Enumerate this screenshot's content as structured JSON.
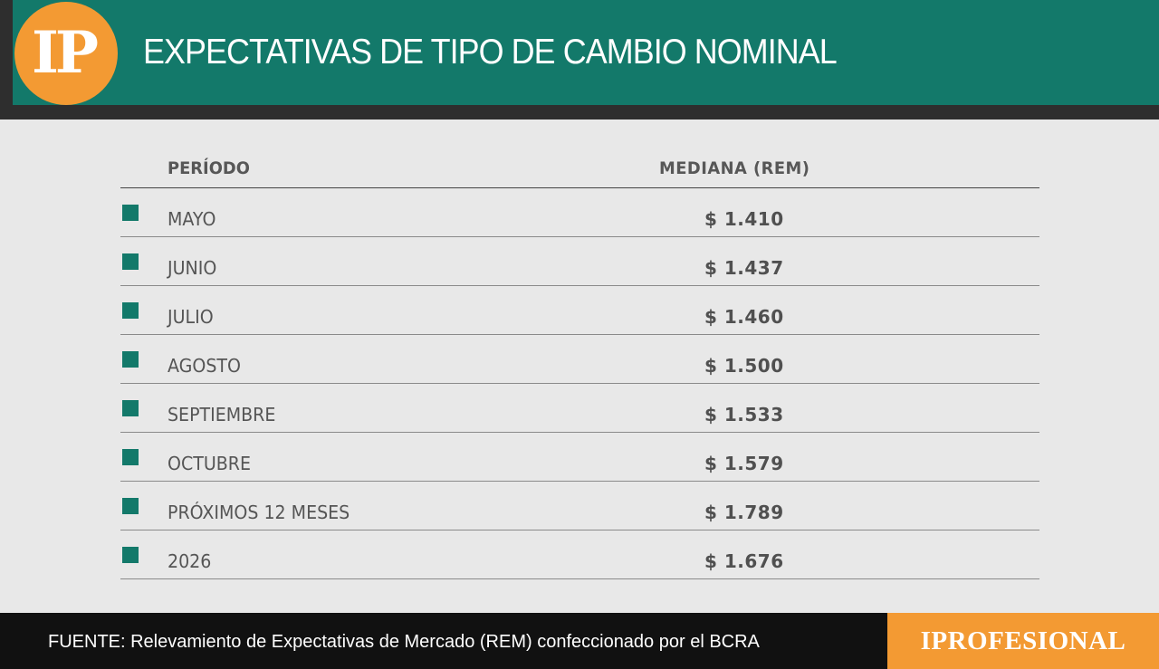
{
  "header": {
    "logo_text": "IP",
    "title": "EXPECTATIVAS DE TIPO DE CAMBIO NOMINAL"
  },
  "table": {
    "columns": [
      "PERÍODO",
      "MEDIANA (REM)"
    ],
    "rows": [
      {
        "period": "MAYO",
        "value": "$ 1.410"
      },
      {
        "period": "JUNIO",
        "value": "$ 1.437"
      },
      {
        "period": "JULIO",
        "value": "$ 1.460"
      },
      {
        "period": "AGOSTO",
        "value": "$ 1.500"
      },
      {
        "period": "SEPTIEMBRE",
        "value": "$ 1.533"
      },
      {
        "period": "OCTUBRE",
        "value": "$ 1.579"
      },
      {
        "period": "PRÓXIMOS 12 MESES",
        "value": "$ 1.789"
      },
      {
        "period": "2026",
        "value": "$ 1.676"
      }
    ]
  },
  "footer": {
    "source": "FUENTE: Relevamiento de Expectativas de Mercado (REM) confeccionado por el BCRA",
    "brand": "IPROFESIONAL"
  },
  "colors": {
    "green": "#13796a",
    "orange": "#f39a33",
    "dark": "#2e2e2e",
    "background": "#e8e8e8"
  }
}
